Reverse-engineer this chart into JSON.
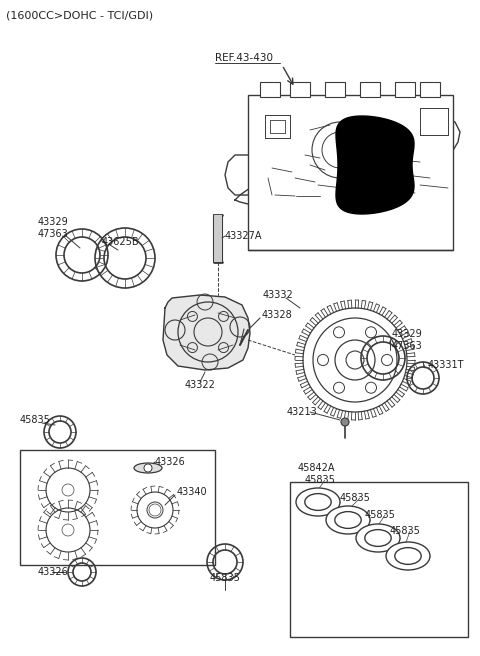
{
  "title": "(1600CC>DOHC - TCI/GDI)",
  "bg_color": "#ffffff",
  "lc": "#3a3a3a",
  "tc": "#222222",
  "ref_label": "REF.43-430",
  "labels": {
    "43329_top": "43329\n47363",
    "43625B": "43625B",
    "43327A": "43327A",
    "43322": "43322",
    "43328": "43328",
    "43332": "43332",
    "43329_right": "43329\n47363",
    "43331T": "43331T",
    "43213": "43213",
    "45835_left": "45835",
    "43326_top": "43326",
    "43340": "43340",
    "45835_bottom": "45835",
    "43326_bottom": "43326",
    "45842A": "45842A",
    "45835_b1": "45835",
    "45835_b2": "45835",
    "45835_b3": "45835",
    "45835_b4": "45835"
  }
}
